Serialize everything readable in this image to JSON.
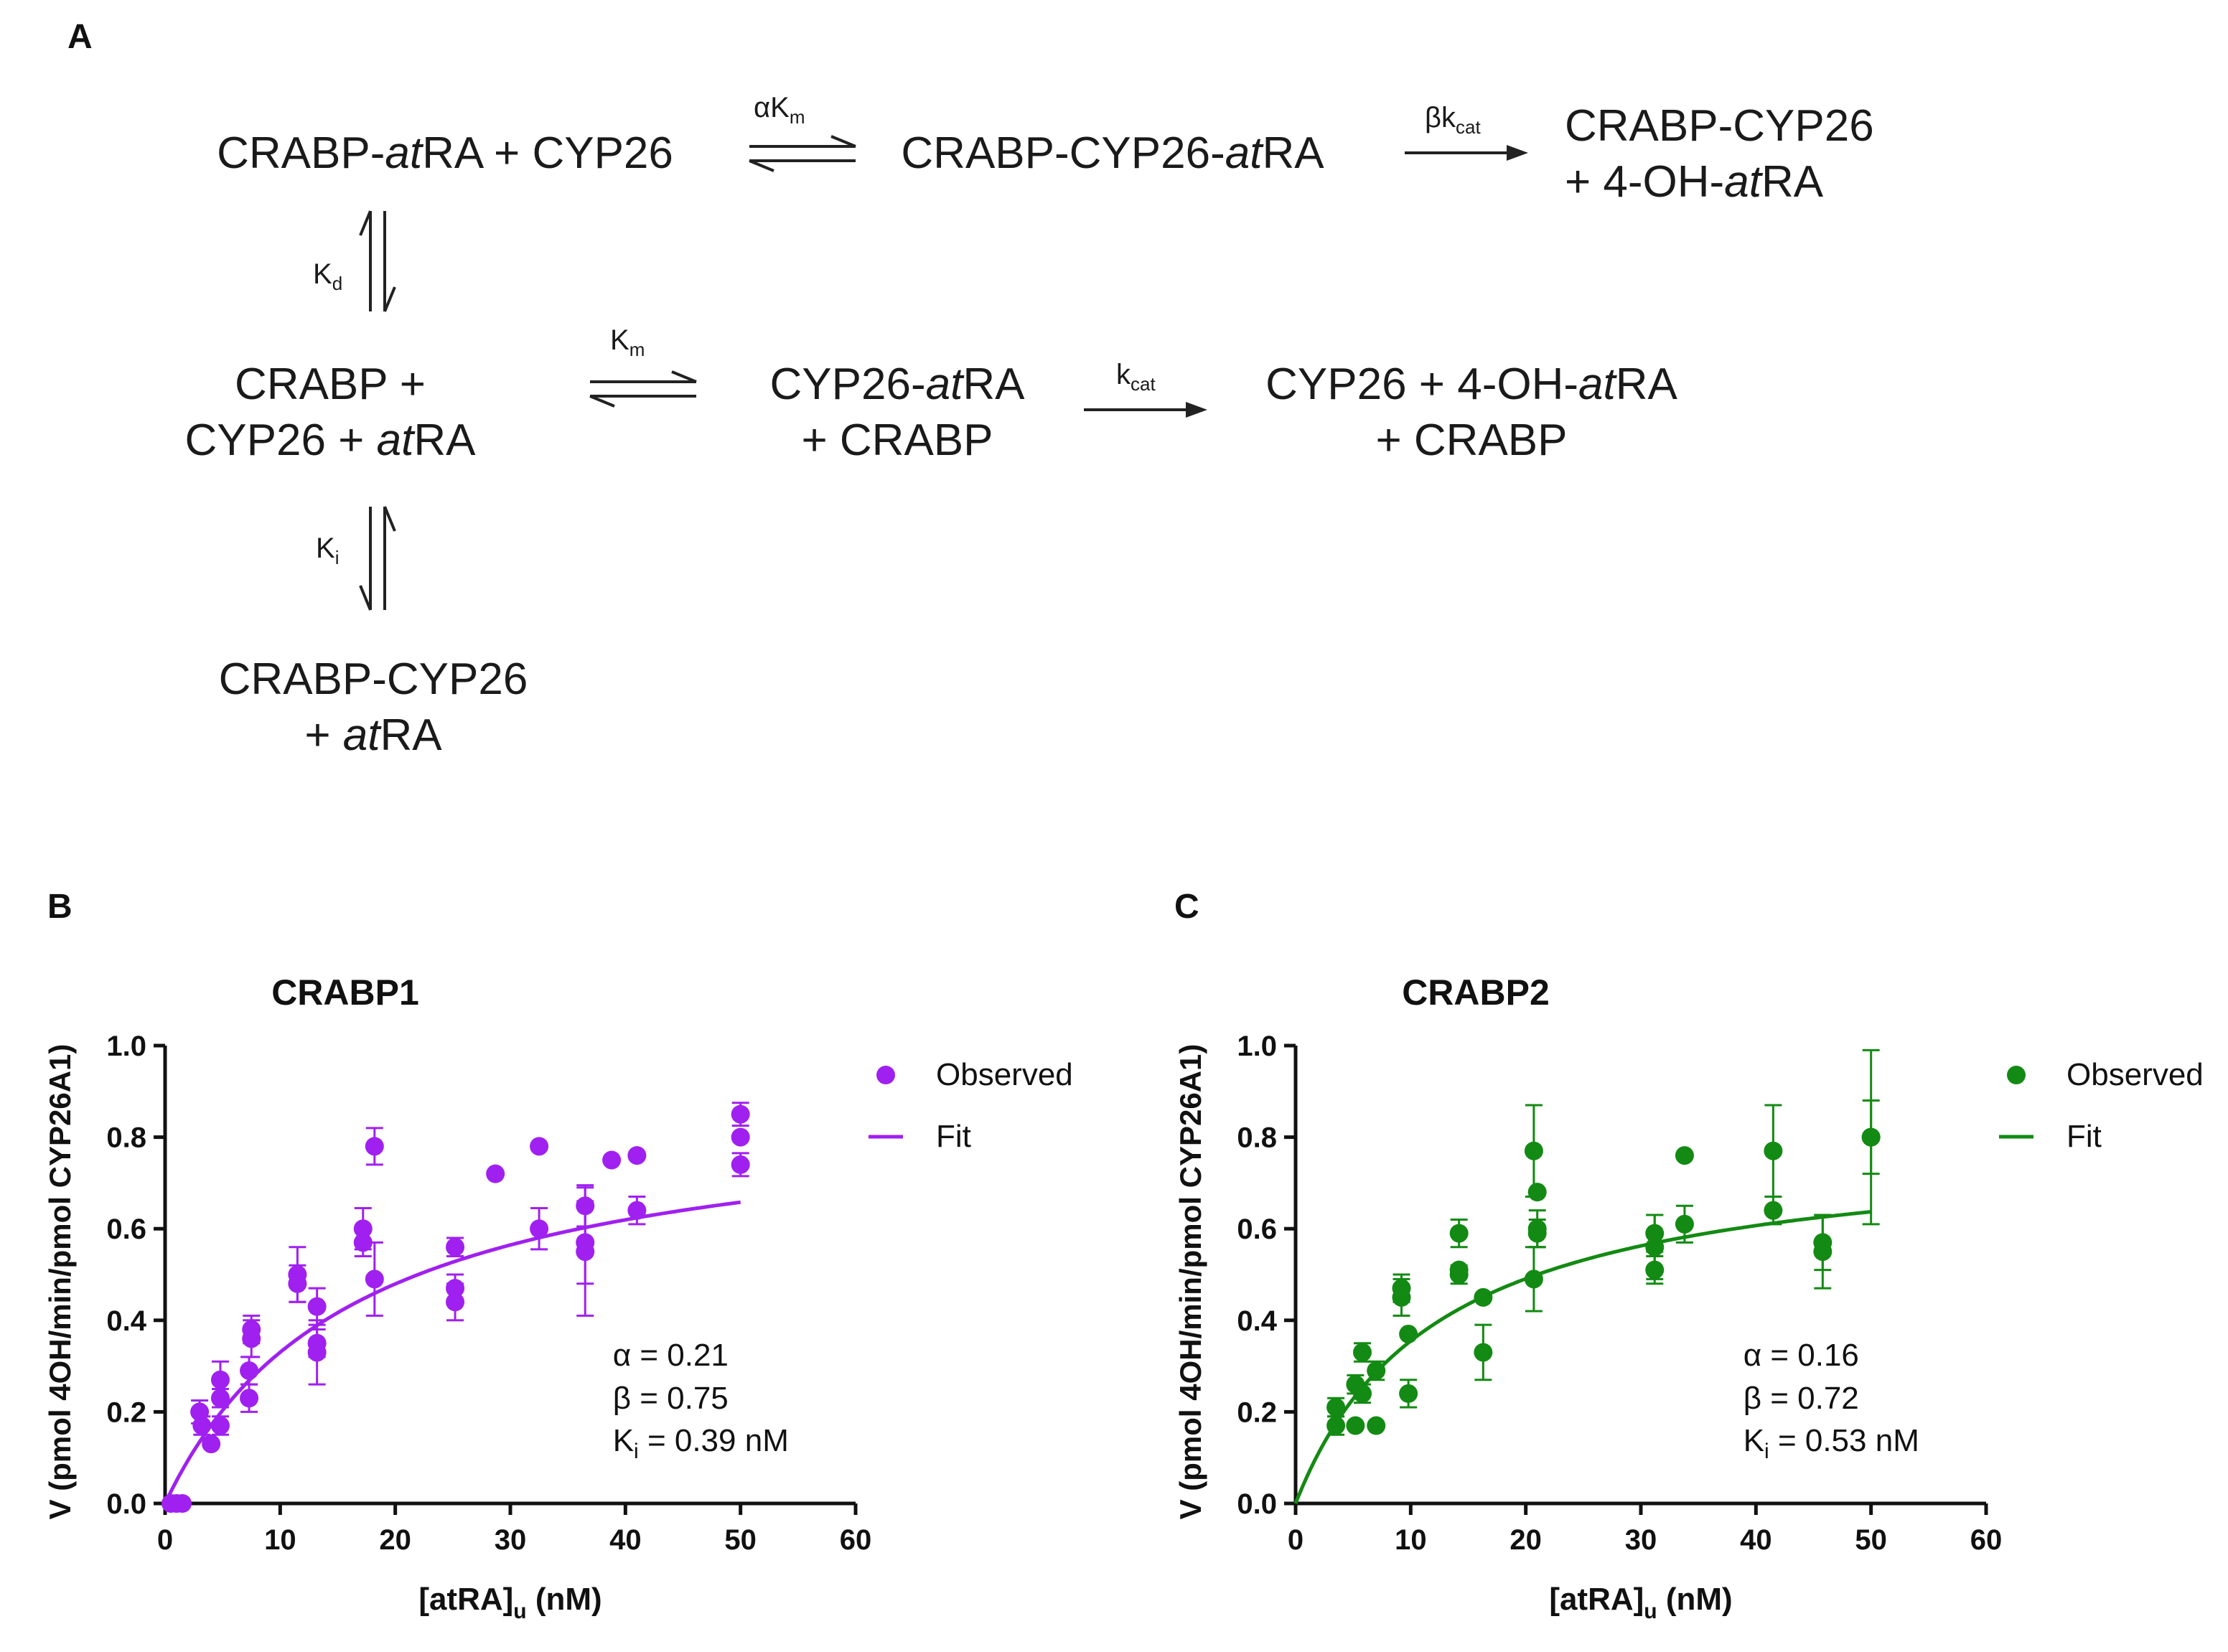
{
  "panel_labels": {
    "a": "A",
    "b": "B",
    "c": "C"
  },
  "scheme": {
    "row1": {
      "left_pre": "CRABP-",
      "left_it": "at",
      "left_post": "RA + CYP26",
      "arrow1_label_main": "αK",
      "arrow1_label_sub": "m",
      "middle_pre": "CRABP-CYP26-",
      "middle_it": "at",
      "middle_post": "RA",
      "arrow2_label_main": "βk",
      "arrow2_label_sub": "cat",
      "right_line1": "CRABP-CYP26",
      "right_line2_pre": "+ 4-OH-",
      "right_line2_it": "at",
      "right_line2_post": "RA"
    },
    "kd_label_main": "K",
    "kd_label_sub": "d",
    "row2": {
      "left_line1": "CRABP +",
      "left_line2_pre": "CYP26 + ",
      "left_line2_it": "at",
      "left_line2_post": "RA",
      "arrow1_label_main": "K",
      "arrow1_label_sub": "m",
      "middle_line1_pre": "CYP26-",
      "middle_line1_it": "at",
      "middle_line1_post": "RA",
      "middle_line2": "+ CRABP",
      "arrow2_label_main": "k",
      "arrow2_label_sub": "cat",
      "right_line1_pre": "CYP26 + 4-OH-",
      "right_line1_it": "at",
      "right_line1_post": "RA",
      "right_line2": "+ CRABP"
    },
    "ki_label_main": "K",
    "ki_label_sub": "i",
    "row3": {
      "line1": "CRABP-CYP26",
      "line2_pre": "+ ",
      "line2_it": "at",
      "line2_post": "RA"
    }
  },
  "colors": {
    "crabp1": "#a020f0",
    "crabp2": "#138a13",
    "axis": "#111111"
  },
  "chart_data": [
    {
      "type": "scatter",
      "title": "CRABP1",
      "xlabel_main": "[atRA]",
      "xlabel_sub": "u",
      "xlabel_post": " (nM)",
      "ylabel": "V (pmol 4OH/min/pmol CYP26A1)",
      "xlim": [
        0,
        60
      ],
      "ylim": [
        0,
        1.0
      ],
      "xticks": [
        "0",
        "10",
        "20",
        "30",
        "40",
        "50",
        "60"
      ],
      "yticks": [
        "0.0",
        "0.2",
        "0.4",
        "0.6",
        "0.8",
        "1.0"
      ],
      "legend": {
        "observed": "Observed",
        "fit": "Fit",
        "position": "top-right"
      },
      "params": {
        "alpha": "α = 0.21",
        "beta": "β = 0.75",
        "ki_main": "K",
        "ki_sub": "i",
        "ki_post": " = 0.39 nM"
      },
      "fit": {
        "vmax": 0.875,
        "km": 16.5
      },
      "observed": [
        {
          "x": 0.5,
          "y": 0.0
        },
        {
          "x": 1.0,
          "y": 0.0
        },
        {
          "x": 1.5,
          "y": 0.0
        },
        {
          "x": 3.0,
          "y": 0.2,
          "err": 0.025
        },
        {
          "x": 3.2,
          "y": 0.17,
          "err": 0.02
        },
        {
          "x": 4.0,
          "y": 0.13
        },
        {
          "x": 4.8,
          "y": 0.23,
          "err": 0.02
        },
        {
          "x": 4.8,
          "y": 0.27,
          "err": 0.04
        },
        {
          "x": 4.8,
          "y": 0.17,
          "err": 0.02
        },
        {
          "x": 7.3,
          "y": 0.23,
          "err": 0.03
        },
        {
          "x": 7.3,
          "y": 0.29,
          "err": 0.03
        },
        {
          "x": 7.5,
          "y": 0.36,
          "err": 0.04
        },
        {
          "x": 7.5,
          "y": 0.38,
          "err": 0.03
        },
        {
          "x": 11.5,
          "y": 0.48,
          "err": 0.04
        },
        {
          "x": 11.5,
          "y": 0.5,
          "err": 0.06
        },
        {
          "x": 13.2,
          "y": 0.33,
          "err": 0.07
        },
        {
          "x": 13.2,
          "y": 0.43,
          "err": 0.04
        },
        {
          "x": 13.2,
          "y": 0.35,
          "err": 0.03
        },
        {
          "x": 17.2,
          "y": 0.57,
          "err": 0.03
        },
        {
          "x": 17.2,
          "y": 0.6,
          "err": 0.045
        },
        {
          "x": 18.2,
          "y": 0.78,
          "err": 0.04
        },
        {
          "x": 18.2,
          "y": 0.49,
          "err": 0.08
        },
        {
          "x": 25.2,
          "y": 0.44,
          "err": 0.04
        },
        {
          "x": 25.2,
          "y": 0.47,
          "err": 0.03
        },
        {
          "x": 25.2,
          "y": 0.56,
          "err": 0.02
        },
        {
          "x": 28.7,
          "y": 0.72
        },
        {
          "x": 32.5,
          "y": 0.78
        },
        {
          "x": 32.5,
          "y": 0.6,
          "err": 0.045
        },
        {
          "x": 36.5,
          "y": 0.57,
          "err": 0.09
        },
        {
          "x": 36.5,
          "y": 0.55,
          "err": 0.14
        },
        {
          "x": 36.5,
          "y": 0.65,
          "err": 0.045
        },
        {
          "x": 38.8,
          "y": 0.75
        },
        {
          "x": 41.0,
          "y": 0.76
        },
        {
          "x": 41.0,
          "y": 0.64,
          "err": 0.03
        },
        {
          "x": 50.0,
          "y": 0.85,
          "err": 0.025
        },
        {
          "x": 50.0,
          "y": 0.8
        },
        {
          "x": 50.0,
          "y": 0.74,
          "err": 0.025
        }
      ]
    },
    {
      "type": "scatter",
      "title": "CRABP2",
      "xlabel_main": "[atRA]",
      "xlabel_sub": "u",
      "xlabel_post": " (nM)",
      "ylabel": "V (pmol 4OH/min/pmol CYP26A1)",
      "xlim": [
        0,
        60
      ],
      "ylim": [
        0,
        1.0
      ],
      "xticks": [
        "0",
        "10",
        "20",
        "30",
        "40",
        "50",
        "60"
      ],
      "yticks": [
        "0.0",
        "0.2",
        "0.4",
        "0.6",
        "0.8",
        "1.0"
      ],
      "legend": {
        "observed": "Observed",
        "fit": "Fit",
        "position": "top-right"
      },
      "params": {
        "alpha": "α = 0.16",
        "beta": "β = 0.72",
        "ki_main": "K",
        "ki_sub": "i",
        "ki_post": " = 0.53 nM"
      },
      "fit": {
        "vmax": 0.795,
        "km": 12.4
      },
      "observed": [
        {
          "x": 3.5,
          "y": 0.17,
          "err": 0.02
        },
        {
          "x": 3.5,
          "y": 0.21,
          "err": 0.02
        },
        {
          "x": 5.2,
          "y": 0.17
        },
        {
          "x": 5.2,
          "y": 0.26,
          "err": 0.02
        },
        {
          "x": 5.8,
          "y": 0.24,
          "err": 0.02
        },
        {
          "x": 5.8,
          "y": 0.33,
          "err": 0.02
        },
        {
          "x": 7.0,
          "y": 0.17
        },
        {
          "x": 7.0,
          "y": 0.29,
          "err": 0.02
        },
        {
          "x": 9.2,
          "y": 0.45,
          "err": 0.04
        },
        {
          "x": 9.2,
          "y": 0.47,
          "err": 0.03
        },
        {
          "x": 9.8,
          "y": 0.37
        },
        {
          "x": 9.8,
          "y": 0.24,
          "err": 0.03
        },
        {
          "x": 14.2,
          "y": 0.5,
          "err": 0.02
        },
        {
          "x": 14.2,
          "y": 0.51
        },
        {
          "x": 14.2,
          "y": 0.59,
          "err": 0.03
        },
        {
          "x": 16.3,
          "y": 0.45
        },
        {
          "x": 16.3,
          "y": 0.33,
          "err": 0.06
        },
        {
          "x": 20.7,
          "y": 0.77,
          "err": 0.1
        },
        {
          "x": 20.7,
          "y": 0.49,
          "err": 0.07
        },
        {
          "x": 21.0,
          "y": 0.68
        },
        {
          "x": 21.0,
          "y": 0.59,
          "err": 0.03
        },
        {
          "x": 21.0,
          "y": 0.6,
          "err": 0.04
        },
        {
          "x": 31.2,
          "y": 0.51,
          "err": 0.03
        },
        {
          "x": 31.2,
          "y": 0.56,
          "err": 0.07
        },
        {
          "x": 31.2,
          "y": 0.59,
          "err": 0.04
        },
        {
          "x": 33.8,
          "y": 0.76
        },
        {
          "x": 33.8,
          "y": 0.61,
          "err": 0.04
        },
        {
          "x": 41.5,
          "y": 0.77,
          "err": 0.1
        },
        {
          "x": 41.5,
          "y": 0.64,
          "err": 0.03
        },
        {
          "x": 45.8,
          "y": 0.55,
          "err": 0.08
        },
        {
          "x": 45.8,
          "y": 0.57,
          "err": 0.06
        },
        {
          "x": 50.0,
          "y": 0.8,
          "err": 0.19
        },
        {
          "x": 50.0,
          "y": 0.8,
          "err": 0.08
        }
      ]
    }
  ]
}
